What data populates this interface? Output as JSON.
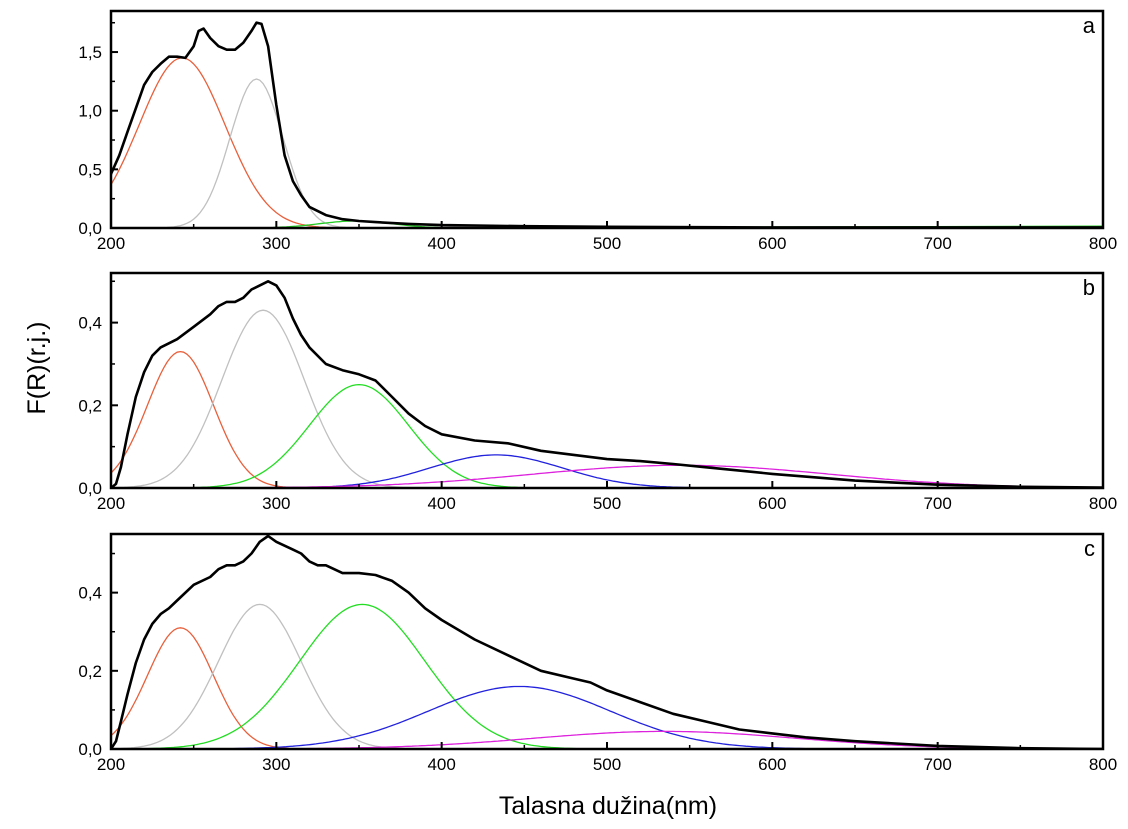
{
  "x_axis_title": "Talasna dužina(nm)",
  "y_axis_title": "F(R)(r.j.)",
  "chart_data": [
    {
      "type": "line",
      "panel_label": "a",
      "xlim": [
        200,
        800
      ],
      "ylim": [
        0,
        1.85
      ],
      "x_ticks": [
        200,
        300,
        400,
        500,
        600,
        700,
        800
      ],
      "x_tick_labels": [
        "200",
        "300",
        "400",
        "500",
        "600",
        "700",
        "800"
      ],
      "y_ticks": [
        0,
        0.5,
        1.0,
        1.5
      ],
      "y_tick_labels": [
        "0,0",
        "0,5",
        "1,0",
        "1,5"
      ],
      "grid": false,
      "series": [
        {
          "color": "#000000",
          "width": 2.6,
          "points": [
            [
              200,
              0.46
            ],
            [
              205,
              0.62
            ],
            [
              210,
              0.82
            ],
            [
              215,
              1.02
            ],
            [
              220,
              1.22
            ],
            [
              225,
              1.33
            ],
            [
              230,
              1.4
            ],
            [
              235,
              1.46
            ],
            [
              240,
              1.46
            ],
            [
              245,
              1.45
            ],
            [
              250,
              1.55
            ],
            [
              253,
              1.68
            ],
            [
              256,
              1.7
            ],
            [
              260,
              1.62
            ],
            [
              265,
              1.55
            ],
            [
              270,
              1.52
            ],
            [
              275,
              1.52
            ],
            [
              280,
              1.58
            ],
            [
              285,
              1.68
            ],
            [
              288,
              1.75
            ],
            [
              291,
              1.74
            ],
            [
              295,
              1.55
            ],
            [
              300,
              1.05
            ],
            [
              305,
              0.62
            ],
            [
              310,
              0.4
            ],
            [
              315,
              0.28
            ],
            [
              320,
              0.18
            ],
            [
              330,
              0.11
            ],
            [
              340,
              0.075
            ],
            [
              350,
              0.06
            ],
            [
              360,
              0.05
            ],
            [
              380,
              0.035
            ],
            [
              400,
              0.025
            ],
            [
              450,
              0.015
            ],
            [
              500,
              0.01
            ],
            [
              600,
              0.005
            ],
            [
              700,
              0.005
            ],
            [
              800,
              0.005
            ]
          ]
        },
        {
          "color": "#e8603c",
          "width": 1.3,
          "gaussian": {
            "a": 1.45,
            "mu": 243,
            "sigma": 26
          }
        },
        {
          "color": "#c0c0c0",
          "width": 1.3,
          "gaussian": {
            "a": 1.27,
            "mu": 288,
            "sigma": 16
          }
        },
        {
          "color": "#22cc22",
          "width": 1.3,
          "gaussian": {
            "a": 0.06,
            "mu": 348,
            "sigma": 22
          }
        },
        {
          "color": "#22cc22",
          "width": 1.3,
          "points": [
            [
              380,
              0.0
            ],
            [
              800,
              0.015
            ]
          ]
        }
      ]
    },
    {
      "type": "line",
      "panel_label": "b",
      "xlim": [
        200,
        800
      ],
      "ylim": [
        0,
        0.52
      ],
      "x_ticks": [
        200,
        300,
        400,
        500,
        600,
        700,
        800
      ],
      "x_tick_labels": [
        "200",
        "300",
        "400",
        "500",
        "600",
        "700",
        "800"
      ],
      "y_ticks": [
        0,
        0.2,
        0.4
      ],
      "y_tick_labels": [
        "0,0",
        "0,2",
        "0,4"
      ],
      "grid": false,
      "series": [
        {
          "color": "#000000",
          "width": 2.6,
          "points": [
            [
              200,
              0.0
            ],
            [
              203,
              0.01
            ],
            [
              206,
              0.05
            ],
            [
              210,
              0.13
            ],
            [
              215,
              0.22
            ],
            [
              220,
              0.28
            ],
            [
              225,
              0.32
            ],
            [
              230,
              0.34
            ],
            [
              235,
              0.35
            ],
            [
              240,
              0.36
            ],
            [
              250,
              0.39
            ],
            [
              260,
              0.42
            ],
            [
              265,
              0.44
            ],
            [
              270,
              0.45
            ],
            [
              275,
              0.45
            ],
            [
              280,
              0.46
            ],
            [
              285,
              0.48
            ],
            [
              290,
              0.49
            ],
            [
              295,
              0.5
            ],
            [
              300,
              0.49
            ],
            [
              305,
              0.46
            ],
            [
              310,
              0.41
            ],
            [
              315,
              0.37
            ],
            [
              320,
              0.34
            ],
            [
              330,
              0.3
            ],
            [
              340,
              0.285
            ],
            [
              350,
              0.275
            ],
            [
              360,
              0.26
            ],
            [
              370,
              0.22
            ],
            [
              380,
              0.18
            ],
            [
              390,
              0.15
            ],
            [
              400,
              0.13
            ],
            [
              420,
              0.115
            ],
            [
              440,
              0.108
            ],
            [
              460,
              0.09
            ],
            [
              480,
              0.08
            ],
            [
              500,
              0.07
            ],
            [
              520,
              0.065
            ],
            [
              540,
              0.058
            ],
            [
              560,
              0.05
            ],
            [
              580,
              0.042
            ],
            [
              600,
              0.034
            ],
            [
              650,
              0.018
            ],
            [
              700,
              0.008
            ],
            [
              750,
              0.003
            ],
            [
              800,
              0.001
            ]
          ]
        },
        {
          "color": "#e8603c",
          "width": 1.3,
          "gaussian": {
            "a": 0.33,
            "mu": 242,
            "sigma": 20
          }
        },
        {
          "color": "#c0c0c0",
          "width": 1.3,
          "gaussian": {
            "a": 0.43,
            "mu": 292,
            "sigma": 25
          }
        },
        {
          "color": "#22dd22",
          "width": 1.3,
          "gaussian": {
            "a": 0.25,
            "mu": 350,
            "sigma": 30
          }
        },
        {
          "color": "#2222dd",
          "width": 1.3,
          "gaussian": {
            "a": 0.08,
            "mu": 433,
            "sigma": 40
          }
        },
        {
          "color": "#dd22dd",
          "width": 1.3,
          "gaussian": {
            "a": 0.055,
            "mu": 545,
            "sigma": 90
          }
        }
      ]
    },
    {
      "type": "line",
      "panel_label": "c",
      "xlim": [
        200,
        800
      ],
      "ylim": [
        0,
        0.55
      ],
      "x_ticks": [
        200,
        300,
        400,
        500,
        600,
        700,
        800
      ],
      "x_tick_labels": [
        "200",
        "300",
        "400",
        "500",
        "600",
        "700",
        "800"
      ],
      "y_ticks": [
        0,
        0.2,
        0.4
      ],
      "y_tick_labels": [
        "0,0",
        "0,2",
        "0,4"
      ],
      "grid": false,
      "series": [
        {
          "color": "#000000",
          "width": 2.6,
          "points": [
            [
              200,
              0.0
            ],
            [
              203,
              0.02
            ],
            [
              206,
              0.07
            ],
            [
              210,
              0.14
            ],
            [
              215,
              0.22
            ],
            [
              220,
              0.28
            ],
            [
              225,
              0.32
            ],
            [
              230,
              0.345
            ],
            [
              235,
              0.36
            ],
            [
              240,
              0.38
            ],
            [
              250,
              0.42
            ],
            [
              260,
              0.44
            ],
            [
              265,
              0.46
            ],
            [
              270,
              0.47
            ],
            [
              275,
              0.47
            ],
            [
              280,
              0.48
            ],
            [
              285,
              0.5
            ],
            [
              290,
              0.53
            ],
            [
              295,
              0.545
            ],
            [
              300,
              0.53
            ],
            [
              305,
              0.52
            ],
            [
              310,
              0.51
            ],
            [
              315,
              0.5
            ],
            [
              320,
              0.48
            ],
            [
              325,
              0.47
            ],
            [
              330,
              0.47
            ],
            [
              335,
              0.46
            ],
            [
              340,
              0.45
            ],
            [
              350,
              0.45
            ],
            [
              360,
              0.445
            ],
            [
              370,
              0.43
            ],
            [
              380,
              0.4
            ],
            [
              390,
              0.36
            ],
            [
              400,
              0.33
            ],
            [
              420,
              0.28
            ],
            [
              440,
              0.24
            ],
            [
              460,
              0.2
            ],
            [
              480,
              0.18
            ],
            [
              490,
              0.17
            ],
            [
              500,
              0.15
            ],
            [
              520,
              0.12
            ],
            [
              540,
              0.09
            ],
            [
              560,
              0.07
            ],
            [
              580,
              0.05
            ],
            [
              600,
              0.04
            ],
            [
              620,
              0.03
            ],
            [
              650,
              0.02
            ],
            [
              700,
              0.008
            ],
            [
              750,
              0.002
            ],
            [
              800,
              0.0
            ]
          ]
        },
        {
          "color": "#e8603c",
          "width": 1.3,
          "gaussian": {
            "a": 0.31,
            "mu": 242,
            "sigma": 20
          }
        },
        {
          "color": "#c0c0c0",
          "width": 1.3,
          "gaussian": {
            "a": 0.37,
            "mu": 290,
            "sigma": 25
          }
        },
        {
          "color": "#22dd22",
          "width": 1.3,
          "gaussian": {
            "a": 0.37,
            "mu": 352,
            "sigma": 38
          }
        },
        {
          "color": "#2222dd",
          "width": 1.3,
          "gaussian": {
            "a": 0.16,
            "mu": 447,
            "sigma": 55
          }
        },
        {
          "color": "#dd22dd",
          "width": 1.3,
          "gaussian": {
            "a": 0.045,
            "mu": 535,
            "sigma": 80
          }
        }
      ]
    }
  ]
}
